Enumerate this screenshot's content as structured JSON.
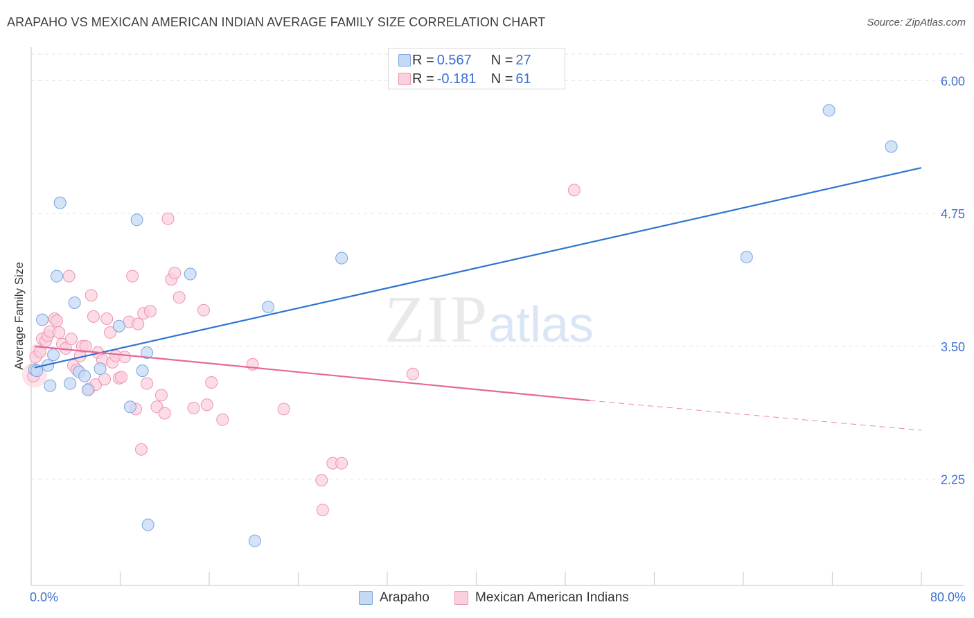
{
  "header": {
    "title": "ARAPAHO VS MEXICAN AMERICAN INDIAN AVERAGE FAMILY SIZE CORRELATION CHART",
    "source": "Source: ZipAtlas.com"
  },
  "watermark": {
    "zip": "ZIP",
    "atlas": "atlas"
  },
  "legend_top": {
    "rows": [
      {
        "r_label": "R = ",
        "r_value": "0.567",
        "n_label": "N = ",
        "n_value": "27"
      },
      {
        "r_label": "R = ",
        "r_value": "-0.181",
        "n_label": "N = ",
        "n_value": "61"
      }
    ]
  },
  "legend_bottom": {
    "items": [
      "Arapaho",
      "Mexican American Indians"
    ]
  },
  "colors": {
    "series1_fill": "#c5d9f5",
    "series1_stroke": "#7aa3e0",
    "series1_line": "#2f74d0",
    "series2_fill": "#fbd0de",
    "series2_stroke": "#ef93b1",
    "series2_line": "#e5679a",
    "axis_text": "#3b6fd1",
    "grid": "#e3e3e3"
  },
  "chart_data": {
    "type": "scatter",
    "title": "ARAPAHO VS MEXICAN AMERICAN INDIAN AVERAGE FAMILY SIZE CORRELATION CHART",
    "xlabel": "",
    "ylabel": "Average Family Size",
    "xlim": [
      0,
      80
    ],
    "ylim": [
      1.25,
      6.25
    ],
    "x_tick_labels": [
      "0.0%",
      "80.0%"
    ],
    "y_ticks": [
      2.25,
      3.5,
      4.75,
      6.0
    ],
    "y_tick_labels": [
      "2.25",
      "3.50",
      "4.75",
      "6.00"
    ],
    "grid": true,
    "legend": "top-center and bottom",
    "series": [
      {
        "name": "Arapaho",
        "r": 0.567,
        "n": 27,
        "trend": {
          "x": [
            0.3,
            80
          ],
          "y": [
            3.3,
            5.18
          ]
        },
        "points": [
          {
            "x": 0.3,
            "y": 3.28
          },
          {
            "x": 0.5,
            "y": 3.27
          },
          {
            "x": 1.0,
            "y": 3.75
          },
          {
            "x": 1.5,
            "y": 3.32
          },
          {
            "x": 1.7,
            "y": 3.13
          },
          {
            "x": 2.0,
            "y": 3.42
          },
          {
            "x": 2.3,
            "y": 4.16
          },
          {
            "x": 2.6,
            "y": 4.85
          },
          {
            "x": 3.5,
            "y": 3.15
          },
          {
            "x": 3.9,
            "y": 3.91
          },
          {
            "x": 4.3,
            "y": 3.26
          },
          {
            "x": 4.8,
            "y": 3.22
          },
          {
            "x": 5.1,
            "y": 3.09
          },
          {
            "x": 6.2,
            "y": 3.29
          },
          {
            "x": 7.9,
            "y": 3.69
          },
          {
            "x": 8.9,
            "y": 2.93
          },
          {
            "x": 9.5,
            "y": 4.69
          },
          {
            "x": 10.0,
            "y": 3.27
          },
          {
            "x": 10.4,
            "y": 3.44
          },
          {
            "x": 10.5,
            "y": 1.82
          },
          {
            "x": 14.3,
            "y": 4.18
          },
          {
            "x": 20.1,
            "y": 1.67
          },
          {
            "x": 21.3,
            "y": 3.87
          },
          {
            "x": 27.9,
            "y": 4.33
          },
          {
            "x": 64.3,
            "y": 4.34
          },
          {
            "x": 71.7,
            "y": 5.72
          },
          {
            "x": 77.3,
            "y": 5.38
          }
        ]
      },
      {
        "name": "Mexican American Indians",
        "r": -0.181,
        "n": 61,
        "trend": {
          "x": [
            0.3,
            50.2
          ],
          "y": [
            3.5,
            2.99
          ]
        },
        "trend_dashed": {
          "x": [
            50.2,
            80
          ],
          "y": [
            2.99,
            2.71
          ]
        },
        "points": [
          {
            "x": 0.2,
            "y": 3.22
          },
          {
            "x": 0.4,
            "y": 3.4
          },
          {
            "x": 0.8,
            "y": 3.45
          },
          {
            "x": 1.0,
            "y": 3.57
          },
          {
            "x": 1.3,
            "y": 3.55
          },
          {
            "x": 1.5,
            "y": 3.6
          },
          {
            "x": 1.7,
            "y": 3.64
          },
          {
            "x": 2.1,
            "y": 3.76
          },
          {
            "x": 2.3,
            "y": 3.74
          },
          {
            "x": 2.5,
            "y": 3.63
          },
          {
            "x": 2.8,
            "y": 3.52
          },
          {
            "x": 3.1,
            "y": 3.48
          },
          {
            "x": 3.4,
            "y": 4.16
          },
          {
            "x": 3.6,
            "y": 3.57
          },
          {
            "x": 3.8,
            "y": 3.32
          },
          {
            "x": 4.1,
            "y": 3.28
          },
          {
            "x": 4.4,
            "y": 3.41
          },
          {
            "x": 4.6,
            "y": 3.5
          },
          {
            "x": 4.9,
            "y": 3.5
          },
          {
            "x": 5.2,
            "y": 3.1
          },
          {
            "x": 5.4,
            "y": 3.98
          },
          {
            "x": 5.6,
            "y": 3.78
          },
          {
            "x": 5.8,
            "y": 3.14
          },
          {
            "x": 6.0,
            "y": 3.44
          },
          {
            "x": 6.4,
            "y": 3.37
          },
          {
            "x": 6.6,
            "y": 3.19
          },
          {
            "x": 6.8,
            "y": 3.76
          },
          {
            "x": 7.1,
            "y": 3.63
          },
          {
            "x": 7.3,
            "y": 3.35
          },
          {
            "x": 7.6,
            "y": 3.41
          },
          {
            "x": 7.9,
            "y": 3.2
          },
          {
            "x": 8.1,
            "y": 3.21
          },
          {
            "x": 8.4,
            "y": 3.4
          },
          {
            "x": 8.8,
            "y": 3.73
          },
          {
            "x": 9.1,
            "y": 4.16
          },
          {
            "x": 9.4,
            "y": 2.91
          },
          {
            "x": 9.6,
            "y": 3.71
          },
          {
            "x": 9.9,
            "y": 2.53
          },
          {
            "x": 10.1,
            "y": 3.81
          },
          {
            "x": 10.4,
            "y": 3.15
          },
          {
            "x": 10.7,
            "y": 3.83
          },
          {
            "x": 11.3,
            "y": 2.93
          },
          {
            "x": 11.7,
            "y": 3.04
          },
          {
            "x": 12.0,
            "y": 2.87
          },
          {
            "x": 12.3,
            "y": 4.7
          },
          {
            "x": 12.6,
            "y": 4.13
          },
          {
            "x": 12.9,
            "y": 4.19
          },
          {
            "x": 13.3,
            "y": 3.96
          },
          {
            "x": 14.6,
            "y": 2.92
          },
          {
            "x": 15.5,
            "y": 3.84
          },
          {
            "x": 15.8,
            "y": 2.95
          },
          {
            "x": 16.2,
            "y": 3.16
          },
          {
            "x": 17.2,
            "y": 2.81
          },
          {
            "x": 19.9,
            "y": 3.33
          },
          {
            "x": 22.7,
            "y": 2.91
          },
          {
            "x": 26.1,
            "y": 2.24
          },
          {
            "x": 26.2,
            "y": 1.96
          },
          {
            "x": 27.1,
            "y": 2.4
          },
          {
            "x": 27.9,
            "y": 2.4
          },
          {
            "x": 34.3,
            "y": 3.24
          },
          {
            "x": 48.8,
            "y": 4.97
          }
        ]
      }
    ]
  }
}
